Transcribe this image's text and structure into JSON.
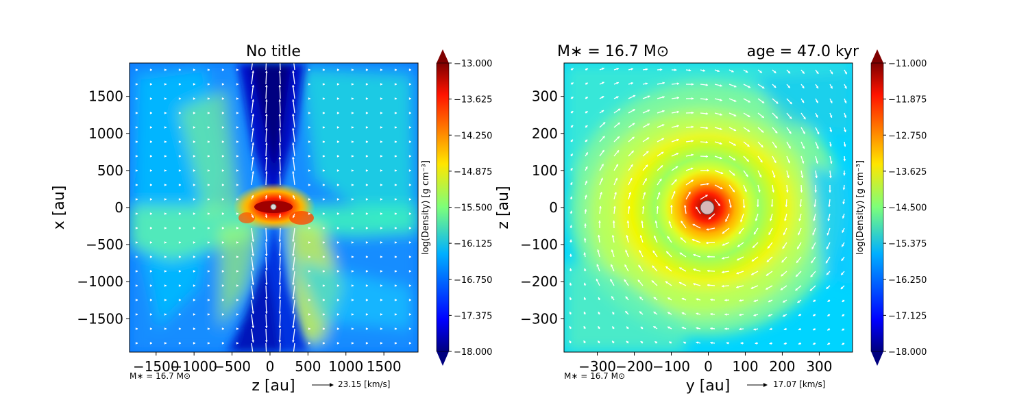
{
  "chart_data": [
    {
      "type": "heatmap",
      "title": "No title",
      "xlabel": "z [au]",
      "ylabel": "x [au]",
      "xlim": [
        -1850,
        1950
      ],
      "ylim": [
        -1950,
        1950
      ],
      "x_ticks": [
        -1500,
        -1000,
        -500,
        0,
        500,
        1000,
        1500
      ],
      "x_tick_labels": [
        "−1500",
        "−1000",
        "−500",
        "0",
        "500",
        "1000",
        "1500"
      ],
      "y_ticks": [
        1500,
        1000,
        500,
        0,
        -500,
        -1000,
        -1500
      ],
      "y_tick_labels": [
        "1500",
        "1000",
        "500",
        "0",
        "−500",
        "−1000",
        "−1500"
      ],
      "colorbar": {
        "label": "log(Density) [g cm⁻³]",
        "range": [
          -18.0,
          -13.0
        ],
        "ticks": [
          "−13.000",
          "−13.625",
          "−14.250",
          "−14.875",
          "−15.500",
          "−16.125",
          "−16.750",
          "−17.375",
          "−18.000"
        ]
      },
      "annotation": "M∗ = 16.7 M⊙",
      "velocity_key": "23.15 [km/s]",
      "structure": "bipolar low-density outflow cavity along x, dense disk near origin"
    },
    {
      "type": "heatmap",
      "title_left": "M∗ = 16.7 M⊙",
      "title_right": "age = 47.0 kyr",
      "xlabel": "y [au]",
      "ylabel": "z [au]",
      "xlim": [
        -390,
        390
      ],
      "ylim": [
        -390,
        390
      ],
      "x_ticks": [
        -300,
        -200,
        -100,
        0,
        100,
        200,
        300
      ],
      "x_tick_labels": [
        "−300",
        "−200",
        "−100",
        "0",
        "100",
        "200",
        "300"
      ],
      "y_ticks": [
        300,
        200,
        100,
        0,
        -100,
        -200,
        -300
      ],
      "y_tick_labels": [
        "300",
        "200",
        "100",
        "0",
        "−100",
        "−200",
        "−300"
      ],
      "colorbar": {
        "label": "log(Density) [g cm⁻³]",
        "range": [
          -18.0,
          -11.0
        ],
        "ticks": [
          "−11.000",
          "−11.875",
          "−12.750",
          "−13.625",
          "−14.500",
          "−15.375",
          "−16.250",
          "−17.125",
          "−18.000"
        ]
      },
      "annotation": "M∗ = 16.7 M⊙",
      "velocity_key": "17.07 [km/s]",
      "structure": "face-on rotating disk with dense core at origin"
    }
  ]
}
